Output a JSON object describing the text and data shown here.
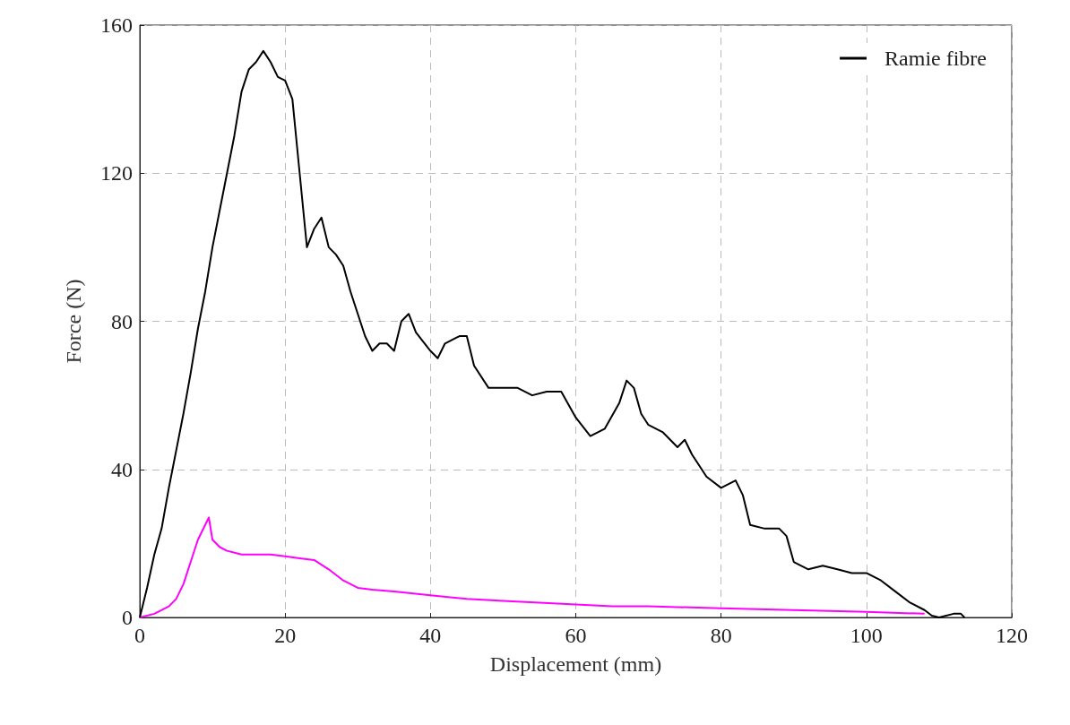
{
  "chart_data": {
    "type": "line",
    "xlabel": "Displacement (mm)",
    "ylabel": "Force (N)",
    "xlim": [
      0,
      120
    ],
    "xticks": [
      0,
      20,
      40,
      60,
      80,
      100,
      120
    ],
    "ylim": [
      0,
      160
    ],
    "yticks": [
      0,
      40,
      80,
      120,
      160
    ],
    "grid": true,
    "legend": "top right",
    "marker": "none",
    "line_style": "solid",
    "series": [
      {
        "color": "#ff00ff",
        "x": [
          0,
          2,
          4,
          5,
          6,
          7,
          8,
          9,
          9.5,
          10,
          11,
          12,
          14,
          16,
          18,
          20,
          22,
          24,
          26,
          28,
          30,
          32,
          35,
          40,
          45,
          50,
          55,
          60,
          65,
          70,
          80,
          90,
          100,
          108
        ],
        "values": [
          0,
          1,
          3,
          5,
          9,
          15,
          21,
          25,
          27,
          21,
          19,
          18,
          17,
          17,
          17,
          16.5,
          16,
          15.5,
          13,
          10,
          8,
          7.5,
          7,
          6,
          5,
          4.5,
          4,
          3.5,
          3,
          3,
          2.5,
          2,
          1.5,
          1
        ]
      },
      {
        "name": "Ramie fibre",
        "color": "#000000",
        "x": [
          0,
          1,
          2,
          3,
          4,
          5,
          6,
          7,
          8,
          9,
          10,
          11,
          12,
          13,
          14,
          15,
          16,
          17,
          18,
          19,
          20,
          21,
          22,
          23,
          24,
          25,
          26,
          27,
          28,
          29,
          30,
          31,
          32,
          33,
          34,
          35,
          36,
          37,
          38,
          40,
          41,
          42,
          44,
          45,
          46,
          48,
          50,
          52,
          54,
          56,
          58,
          60,
          62,
          64,
          66,
          67,
          68,
          69,
          70,
          72,
          74,
          75,
          76,
          78,
          80,
          82,
          83,
          84,
          86,
          88,
          89,
          90,
          92,
          94,
          96,
          98,
          100,
          102,
          104,
          106,
          108,
          109,
          110,
          112,
          113,
          113.5
        ],
        "values": [
          0,
          8,
          17,
          24,
          35,
          45,
          55,
          66,
          78,
          88,
          100,
          110,
          120,
          130,
          142,
          148,
          150,
          153,
          150,
          146,
          145,
          140,
          120,
          100,
          105,
          108,
          100,
          98,
          95,
          88,
          82,
          76,
          72,
          74,
          74,
          72,
          80,
          82,
          77,
          72,
          70,
          74,
          76,
          76,
          68,
          62,
          62,
          62,
          60,
          61,
          61,
          54,
          49,
          51,
          58,
          64,
          62,
          55,
          52,
          50,
          46,
          48,
          44,
          38,
          35,
          37,
          33,
          25,
          24,
          24,
          22,
          15,
          13,
          14,
          13,
          12,
          12,
          10,
          7,
          4,
          2,
          0.5,
          0,
          1,
          1,
          0
        ]
      }
    ]
  }
}
